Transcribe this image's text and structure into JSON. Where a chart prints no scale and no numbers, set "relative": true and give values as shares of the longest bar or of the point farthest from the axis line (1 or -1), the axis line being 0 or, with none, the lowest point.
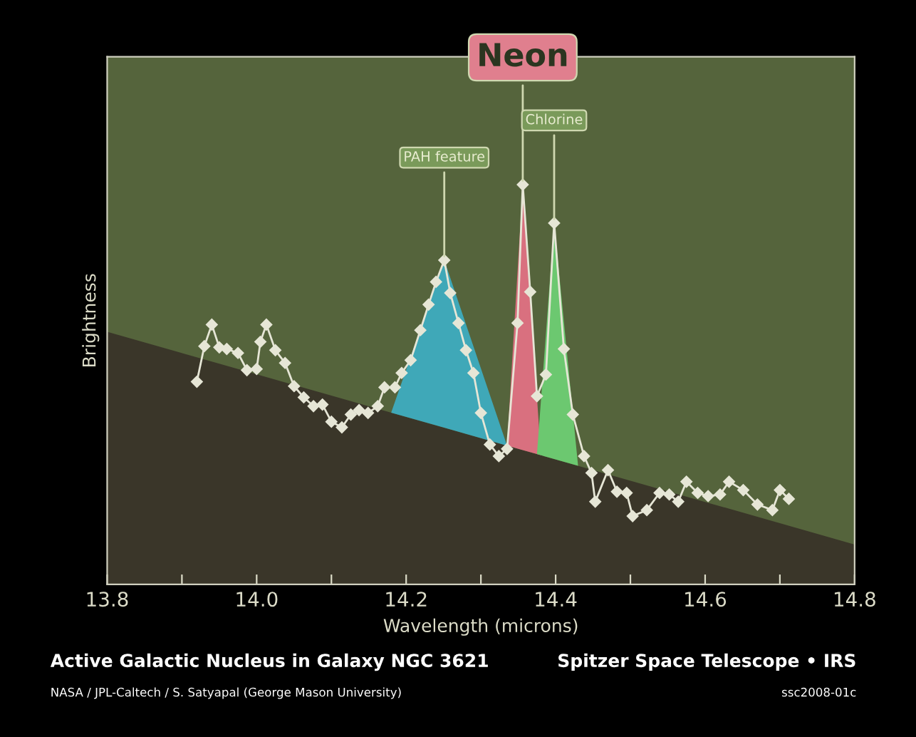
{
  "chart_data": {
    "type": "line",
    "title": "Active Galactic Nucleus in Galaxy NGC 3621",
    "xlabel": "Wavelength (microns)",
    "ylabel": "Brightness",
    "relative": true,
    "tick_labels": "x",
    "grid": false,
    "xlim": [
      13.8,
      14.8
    ],
    "xticks": [
      {
        "value": 13.8,
        "label": "13.8"
      },
      {
        "value": 13.9,
        "label": null
      },
      {
        "value": 14.0,
        "label": "14.0"
      },
      {
        "value": 14.1,
        "label": null
      },
      {
        "value": 14.2,
        "label": "14.2"
      },
      {
        "value": 14.3,
        "label": null
      },
      {
        "value": 14.4,
        "label": "14.4"
      },
      {
        "value": 14.5,
        "label": null
      },
      {
        "value": 14.6,
        "label": "14.6"
      },
      {
        "value": 14.7,
        "label": null
      },
      {
        "value": 14.8,
        "label": "14.8"
      }
    ],
    "series": [
      {
        "type": "area",
        "color": "#3a3629",
        "x": [
          13.8,
          14.8
        ],
        "values": [
          0.632,
          0.1
        ]
      },
      {
        "type": "area",
        "color": "#3fa8b8",
        "x": [
          14.18,
          14.251,
          14.335
        ],
        "values": [
          0.43,
          0.811,
          0.347
        ]
      },
      {
        "type": "area",
        "color": "#d9707f",
        "x": [
          14.335,
          14.356,
          14.38
        ],
        "values": [
          0.347,
          1.0,
          0.33
        ]
      },
      {
        "type": "area",
        "color": "#6cc870",
        "x": [
          14.375,
          14.398,
          14.43
        ],
        "values": [
          0.326,
          0.904,
          0.297
        ]
      },
      {
        "color": "#e6e6d6",
        "marker": "diamond",
        "x": [
          13.92,
          13.93,
          13.94,
          13.95,
          13.96,
          13.975,
          13.987,
          14.0,
          14.005,
          14.013,
          14.025,
          14.038,
          14.05,
          14.063,
          14.076,
          14.088,
          14.1,
          14.114,
          14.126,
          14.137,
          14.149,
          14.162,
          14.171,
          14.185,
          14.194,
          14.206,
          14.219,
          14.23,
          14.24,
          14.251,
          14.259,
          14.27,
          14.28,
          14.29,
          14.3,
          14.312,
          14.324,
          14.335,
          14.349,
          14.356,
          14.366,
          14.375,
          14.387,
          14.398,
          14.411,
          14.423,
          14.438,
          14.448,
          14.453,
          14.47,
          14.482,
          14.495,
          14.503,
          14.522,
          14.539,
          14.552,
          14.564,
          14.575,
          14.59,
          14.604,
          14.62,
          14.632,
          14.651,
          14.67,
          14.69,
          14.7,
          14.712
        ],
        "values": [
          0.507,
          0.596,
          0.65,
          0.593,
          0.589,
          0.579,
          0.536,
          0.539,
          0.607,
          0.65,
          0.586,
          0.554,
          0.496,
          0.468,
          0.446,
          0.45,
          0.407,
          0.393,
          0.425,
          0.436,
          0.429,
          0.446,
          0.493,
          0.493,
          0.529,
          0.561,
          0.636,
          0.7,
          0.757,
          0.811,
          0.729,
          0.654,
          0.586,
          0.529,
          0.429,
          0.35,
          0.321,
          0.339,
          0.654,
          1.0,
          0.732,
          0.471,
          0.525,
          0.904,
          0.589,
          0.425,
          0.321,
          0.279,
          0.207,
          0.286,
          0.232,
          0.229,
          0.171,
          0.186,
          0.229,
          0.225,
          0.207,
          0.257,
          0.229,
          0.221,
          0.225,
          0.257,
          0.236,
          0.2,
          0.186,
          0.236,
          0.214
        ]
      }
    ],
    "annotations": [
      {
        "text": "PAH feature",
        "x": 14.251,
        "y": 0.811
      },
      {
        "text": "Neon",
        "x": 14.356,
        "y": 1.0
      },
      {
        "text": "Chlorine",
        "x": 14.398,
        "y": 0.904
      },
      "Spitzer Space Telescope • IRS",
      "NASA / JPL-Caltech / S. Satyapal (George Mason University)",
      "ssc2008-01c"
    ]
  }
}
